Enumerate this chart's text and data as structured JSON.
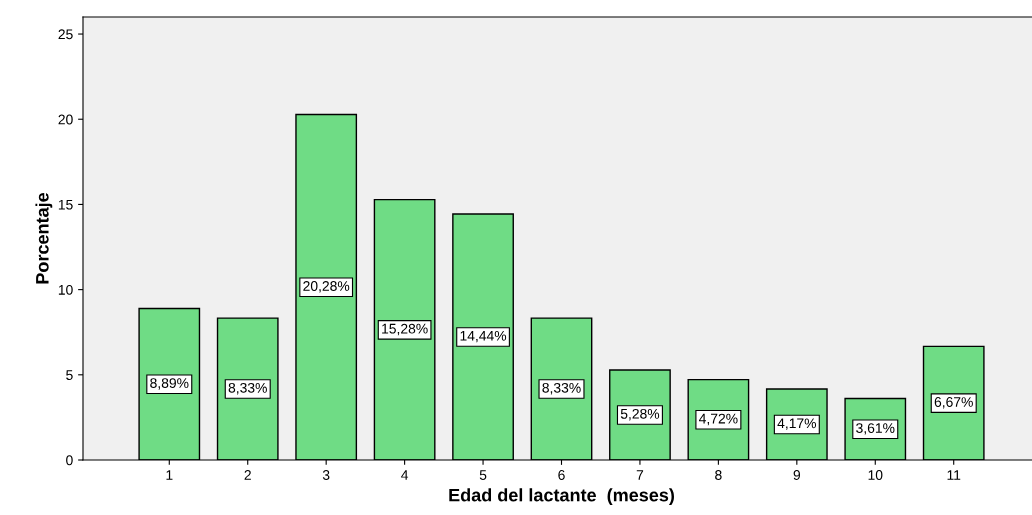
{
  "chart_data": {
    "type": "bar",
    "xlabel": "Edad del lactante  (meses)",
    "ylabel": "Porcentaje",
    "categories": [
      "1",
      "2",
      "3",
      "4",
      "5",
      "6",
      "7",
      "8",
      "9",
      "10",
      "11"
    ],
    "values": [
      8.89,
      8.33,
      20.28,
      15.28,
      14.44,
      8.33,
      5.28,
      4.72,
      4.17,
      3.61,
      6.67
    ],
    "value_labels": [
      "8,89%",
      "8,33%",
      "20,28%",
      "15,28%",
      "14,44%",
      "8,33%",
      "5,28%",
      "4,72%",
      "4,17%",
      "3,61%",
      "6,67%"
    ],
    "color": "#6fdc85",
    "ylim": [
      0,
      26
    ],
    "yticks": [
      0,
      5,
      10,
      15,
      20,
      25
    ],
    "grid": false,
    "legend": false
  }
}
